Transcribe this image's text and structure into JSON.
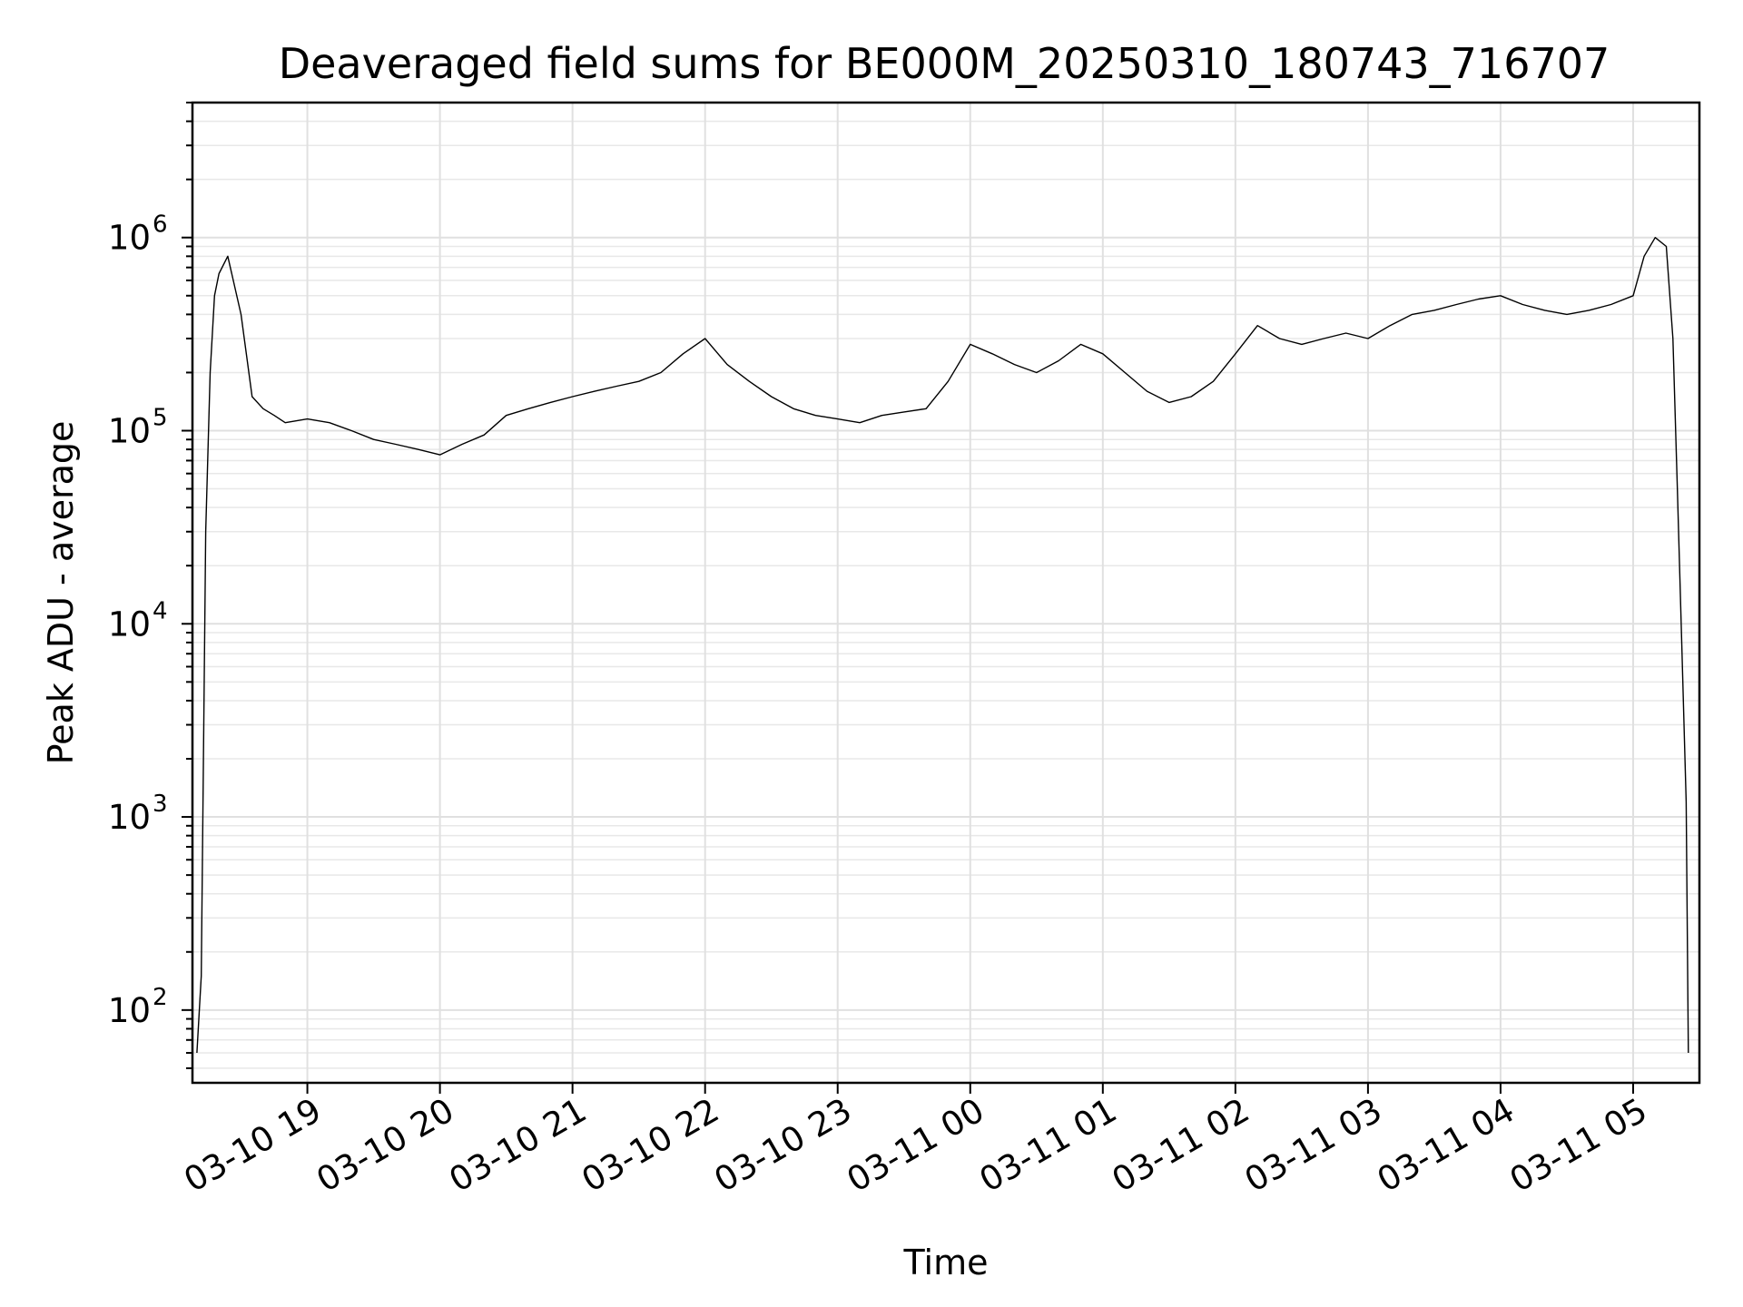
{
  "chart_data": {
    "type": "line",
    "title": "Deaveraged field sums for BE000M_20250310_180743_716707",
    "xlabel": "Time",
    "ylabel": "Peak ADU - average",
    "yscale": "log",
    "ylim": [
      42,
      5000000
    ],
    "xlim": [
      "2025-03-10 18:08",
      "2025-03-11 05:30"
    ],
    "grid": true,
    "x_ticks": [
      {
        "value": "2025-03-10 19:00",
        "label": "03-10 19"
      },
      {
        "value": "2025-03-10 20:00",
        "label": "03-10 20"
      },
      {
        "value": "2025-03-10 21:00",
        "label": "03-10 21"
      },
      {
        "value": "2025-03-10 22:00",
        "label": "03-10 22"
      },
      {
        "value": "2025-03-10 23:00",
        "label": "03-10 23"
      },
      {
        "value": "2025-03-11 00:00",
        "label": "03-11 00"
      },
      {
        "value": "2025-03-11 01:00",
        "label": "03-11 01"
      },
      {
        "value": "2025-03-11 02:00",
        "label": "03-11 02"
      },
      {
        "value": "2025-03-11 03:00",
        "label": "03-11 03"
      },
      {
        "value": "2025-03-11 04:00",
        "label": "03-11 04"
      },
      {
        "value": "2025-03-11 05:00",
        "label": "03-11 05"
      }
    ],
    "y_ticks": [
      {
        "value": 100,
        "base": "10",
        "exp": "2"
      },
      {
        "value": 1000,
        "base": "10",
        "exp": "3"
      },
      {
        "value": 10000,
        "base": "10",
        "exp": "4"
      },
      {
        "value": 100000,
        "base": "10",
        "exp": "5"
      },
      {
        "value": 1000000,
        "base": "10",
        "exp": "6"
      }
    ],
    "series": [
      {
        "color": "#000000",
        "x": [
          "2025-03-10 18:10",
          "2025-03-10 18:12",
          "2025-03-10 18:14",
          "2025-03-10 18:16",
          "2025-03-10 18:18",
          "2025-03-10 18:20",
          "2025-03-10 18:24",
          "2025-03-10 18:30",
          "2025-03-10 18:35",
          "2025-03-10 18:40",
          "2025-03-10 18:45",
          "2025-03-10 18:50",
          "2025-03-10 19:00",
          "2025-03-10 19:10",
          "2025-03-10 19:20",
          "2025-03-10 19:30",
          "2025-03-10 19:40",
          "2025-03-10 19:50",
          "2025-03-10 20:00",
          "2025-03-10 20:10",
          "2025-03-10 20:20",
          "2025-03-10 20:30",
          "2025-03-10 20:40",
          "2025-03-10 20:50",
          "2025-03-10 21:00",
          "2025-03-10 21:10",
          "2025-03-10 21:20",
          "2025-03-10 21:30",
          "2025-03-10 21:40",
          "2025-03-10 21:50",
          "2025-03-10 22:00",
          "2025-03-10 22:10",
          "2025-03-10 22:20",
          "2025-03-10 22:30",
          "2025-03-10 22:40",
          "2025-03-10 22:50",
          "2025-03-10 23:00",
          "2025-03-10 23:10",
          "2025-03-10 23:20",
          "2025-03-10 23:30",
          "2025-03-10 23:40",
          "2025-03-10 23:50",
          "2025-03-11 00:00",
          "2025-03-11 00:10",
          "2025-03-11 00:20",
          "2025-03-11 00:30",
          "2025-03-11 00:40",
          "2025-03-11 00:50",
          "2025-03-11 01:00",
          "2025-03-11 01:10",
          "2025-03-11 01:20",
          "2025-03-11 01:30",
          "2025-03-11 01:40",
          "2025-03-11 01:50",
          "2025-03-11 02:00",
          "2025-03-11 02:10",
          "2025-03-11 02:20",
          "2025-03-11 02:30",
          "2025-03-11 02:40",
          "2025-03-11 02:50",
          "2025-03-11 03:00",
          "2025-03-11 03:10",
          "2025-03-11 03:20",
          "2025-03-11 03:30",
          "2025-03-11 03:40",
          "2025-03-11 03:50",
          "2025-03-11 04:00",
          "2025-03-11 04:10",
          "2025-03-11 04:20",
          "2025-03-11 04:30",
          "2025-03-11 04:40",
          "2025-03-11 04:50",
          "2025-03-11 05:00",
          "2025-03-11 05:05",
          "2025-03-11 05:10",
          "2025-03-11 05:15",
          "2025-03-11 05:18",
          "2025-03-11 05:20",
          "2025-03-11 05:22",
          "2025-03-11 05:24",
          "2025-03-11 05:25"
        ],
        "y": [
          60,
          150,
          30000,
          200000,
          500000,
          650000,
          800000,
          400000,
          150000,
          130000,
          120000,
          110000,
          115000,
          110000,
          100000,
          90000,
          85000,
          80000,
          75000,
          85000,
          95000,
          120000,
          130000,
          140000,
          150000,
          160000,
          170000,
          180000,
          200000,
          250000,
          300000,
          220000,
          180000,
          150000,
          130000,
          120000,
          115000,
          110000,
          120000,
          125000,
          130000,
          180000,
          280000,
          250000,
          220000,
          200000,
          230000,
          280000,
          250000,
          200000,
          160000,
          140000,
          150000,
          180000,
          250000,
          350000,
          300000,
          280000,
          300000,
          320000,
          300000,
          350000,
          400000,
          420000,
          450000,
          480000,
          500000,
          450000,
          420000,
          400000,
          420000,
          450000,
          500000,
          800000,
          1000000,
          900000,
          300000,
          50000,
          8000,
          1200,
          60
        ]
      }
    ]
  }
}
